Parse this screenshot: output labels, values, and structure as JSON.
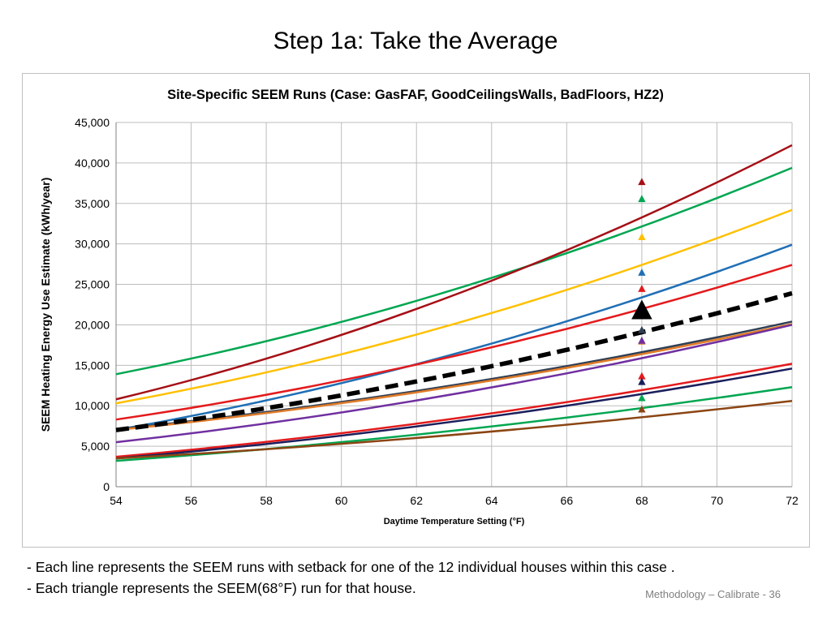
{
  "slide": {
    "title": "Step 1a: Take the Average",
    "bullets": [
      "- Each line represents the SEEM runs with setback for one of the 12 individual houses within this case .",
      "- Each triangle represents the SEEM(68°F) run for that house."
    ],
    "footer": "Methodology – Calibrate - 36"
  },
  "chart_data": {
    "type": "line",
    "title": "Site-Specific SEEM Runs (Case: GasFAF, GoodCeilingsWalls, BadFloors, HZ2)",
    "xlabel": "Daytime Temperature Setting (°F)",
    "ylabel": "SEEM Heating Energy Use Estimate (kWh/year)",
    "xlim": [
      54,
      72
    ],
    "ylim": [
      0,
      45000
    ],
    "x_ticks": [
      "54",
      "56",
      "58",
      "60",
      "62",
      "64",
      "66",
      "68",
      "70",
      "72"
    ],
    "y_ticks": [
      "0",
      "5,000",
      "10,000",
      "15,000",
      "20,000",
      "25,000",
      "30,000",
      "35,000",
      "40,000",
      "45,000"
    ],
    "grid": true,
    "x": [
      54,
      72
    ],
    "series": [
      {
        "color": "#00a651",
        "values": [
          13900,
          39400
        ],
        "marker_68": 35500
      },
      {
        "color": "#a50f15",
        "values": [
          10800,
          42200
        ],
        "marker_68": 37600
      },
      {
        "color": "#ffc000",
        "values": [
          10300,
          34200
        ],
        "marker_68": 30800
      },
      {
        "color": "#1f6fb5",
        "values": [
          7000,
          29900
        ],
        "marker_68": 26400
      },
      {
        "color": "#e41a1c",
        "values": [
          8300,
          27400
        ],
        "marker_68": 24400
      },
      {
        "color": "#2f3f55",
        "values": [
          7100,
          20400
        ],
        "marker_68": 19300
      },
      {
        "color": "#e07b28",
        "values": [
          7000,
          20100
        ],
        "marker_68": 17900
      },
      {
        "color": "#7030a0",
        "values": [
          5500,
          20000
        ],
        "marker_68": 18000
      },
      {
        "color": "#e41a1c",
        "values": [
          3700,
          15200
        ],
        "marker_68": 13600
      },
      {
        "color": "#1a1f5c",
        "values": [
          3500,
          14600
        ],
        "marker_68": 12900
      },
      {
        "color": "#00a651",
        "values": [
          3200,
          12300
        ],
        "marker_68": 10900
      },
      {
        "color": "#8b4513",
        "values": [
          3500,
          10600
        ],
        "marker_68": 9500
      }
    ],
    "average": {
      "color": "#000000",
      "values": [
        7000,
        23900
      ],
      "marker_68": 21600
    }
  }
}
